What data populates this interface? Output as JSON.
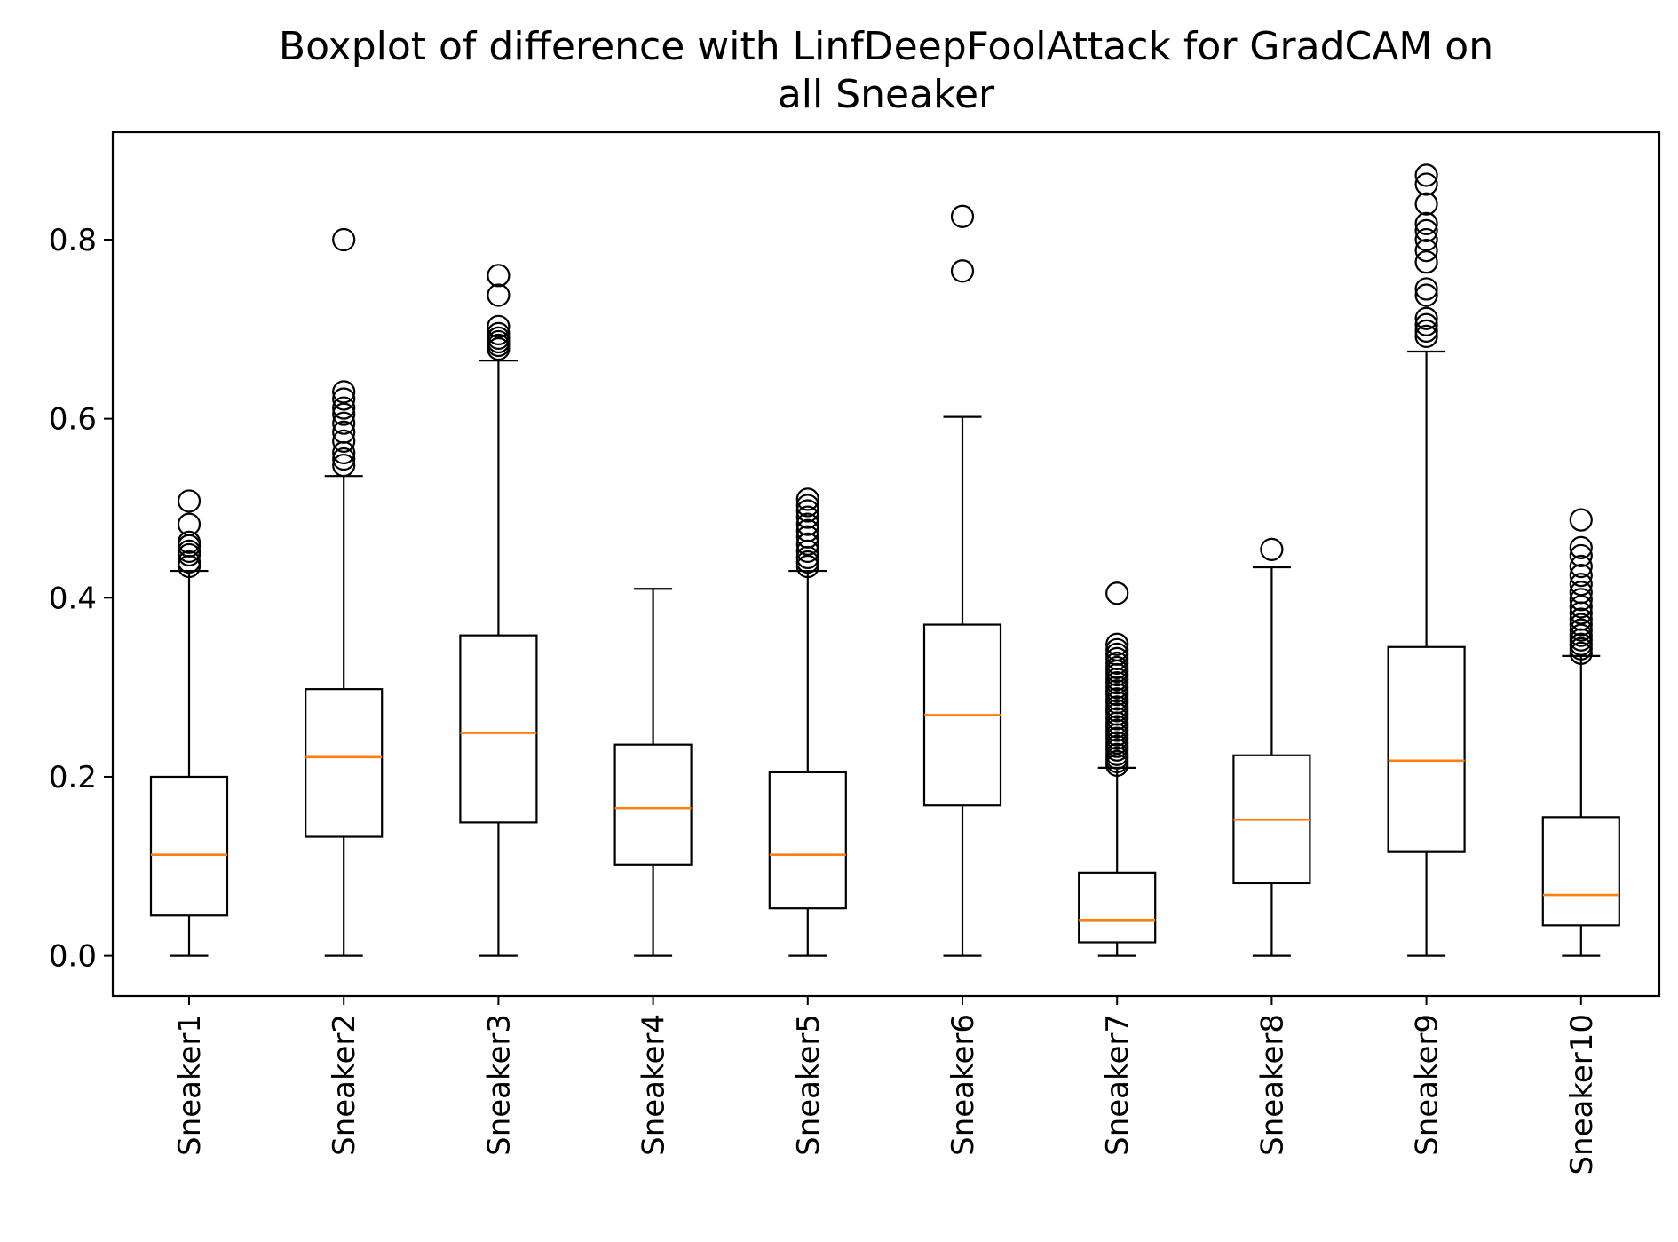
{
  "chart_data": {
    "type": "boxplot",
    "title_lines": [
      "Boxplot of difference with LinfDeepFoolAttack for GradCAM on",
      "all Sneaker"
    ],
    "xlabel": "",
    "ylabel": "",
    "ylim": [
      -0.045,
      0.92
    ],
    "yticks": [
      0.0,
      0.2,
      0.4,
      0.6,
      0.8
    ],
    "ytick_labels": [
      "0.0",
      "0.2",
      "0.4",
      "0.6",
      "0.8"
    ],
    "categories": [
      "Sneaker1",
      "Sneaker2",
      "Sneaker3",
      "Sneaker4",
      "Sneaker5",
      "Sneaker6",
      "Sneaker7",
      "Sneaker8",
      "Sneaker9",
      "Sneaker10"
    ],
    "box_color": "#000000",
    "median_color": "#ff7f0e",
    "grid": false,
    "boxes": [
      {
        "label": "Sneaker1",
        "whisker_low": 0.0,
        "q1": 0.045,
        "median": 0.113,
        "q3": 0.2,
        "whisker_high": 0.43,
        "outliers": [
          0.435,
          0.44,
          0.448,
          0.452,
          0.458,
          0.462,
          0.482,
          0.508
        ]
      },
      {
        "label": "Sneaker2",
        "whisker_low": 0.0,
        "q1": 0.133,
        "median": 0.222,
        "q3": 0.298,
        "whisker_high": 0.536,
        "outliers": [
          0.548,
          0.555,
          0.562,
          0.575,
          0.585,
          0.595,
          0.605,
          0.612,
          0.622,
          0.63,
          0.8
        ]
      },
      {
        "label": "Sneaker3",
        "whisker_low": 0.0,
        "q1": 0.149,
        "median": 0.249,
        "q3": 0.358,
        "whisker_high": 0.665,
        "outliers": [
          0.678,
          0.682,
          0.686,
          0.69,
          0.695,
          0.703,
          0.738,
          0.76
        ]
      },
      {
        "label": "Sneaker4",
        "whisker_low": 0.0,
        "q1": 0.102,
        "median": 0.165,
        "q3": 0.236,
        "whisker_high": 0.41,
        "outliers": []
      },
      {
        "label": "Sneaker5",
        "whisker_low": 0.0,
        "q1": 0.053,
        "median": 0.113,
        "q3": 0.205,
        "whisker_high": 0.43,
        "outliers": [
          0.435,
          0.44,
          0.445,
          0.452,
          0.46,
          0.468,
          0.475,
          0.482,
          0.49,
          0.497,
          0.503,
          0.51
        ]
      },
      {
        "label": "Sneaker6",
        "whisker_low": 0.0,
        "q1": 0.168,
        "median": 0.269,
        "q3": 0.37,
        "whisker_high": 0.602,
        "outliers": [
          0.765,
          0.826
        ]
      },
      {
        "label": "Sneaker7",
        "whisker_low": 0.0,
        "q1": 0.015,
        "median": 0.04,
        "q3": 0.093,
        "whisker_high": 0.21,
        "outliers": [
          0.213,
          0.217,
          0.221,
          0.225,
          0.23,
          0.234,
          0.238,
          0.243,
          0.247,
          0.252,
          0.256,
          0.26,
          0.265,
          0.27,
          0.274,
          0.278,
          0.283,
          0.287,
          0.292,
          0.296,
          0.3,
          0.305,
          0.309,
          0.314,
          0.318,
          0.322,
          0.327,
          0.332,
          0.337,
          0.342,
          0.348,
          0.405
        ]
      },
      {
        "label": "Sneaker8",
        "whisker_low": 0.0,
        "q1": 0.081,
        "median": 0.152,
        "q3": 0.224,
        "whisker_high": 0.434,
        "outliers": [
          0.454
        ]
      },
      {
        "label": "Sneaker9",
        "whisker_low": 0.0,
        "q1": 0.116,
        "median": 0.218,
        "q3": 0.345,
        "whisker_high": 0.675,
        "outliers": [
          0.692,
          0.698,
          0.705,
          0.712,
          0.738,
          0.745,
          0.775,
          0.788,
          0.8,
          0.81,
          0.818,
          0.84,
          0.862,
          0.872
        ]
      },
      {
        "label": "Sneaker10",
        "whisker_low": 0.0,
        "q1": 0.034,
        "median": 0.068,
        "q3": 0.155,
        "whisker_high": 0.335,
        "outliers": [
          0.338,
          0.343,
          0.348,
          0.353,
          0.358,
          0.364,
          0.37,
          0.376,
          0.383,
          0.39,
          0.398,
          0.406,
          0.415,
          0.425,
          0.435,
          0.447,
          0.456,
          0.487
        ]
      }
    ]
  }
}
